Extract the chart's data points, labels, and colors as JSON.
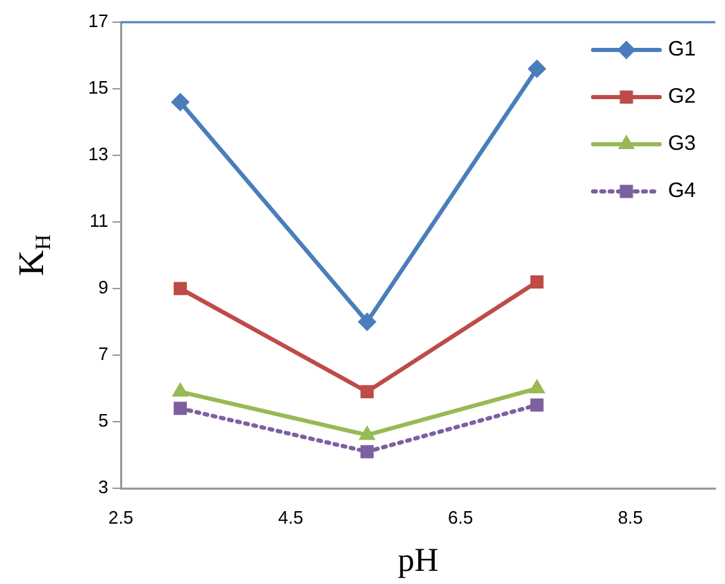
{
  "chart_data": {
    "type": "line",
    "xlabel": "pH",
    "ylabel": "K$_{H}$",
    "xlim": [
      2.5,
      9.5
    ],
    "xticks": [
      2.5,
      4.5,
      6.5,
      8.5
    ],
    "ylim": [
      3,
      17
    ],
    "yticks": [
      3,
      5,
      7,
      9,
      11,
      13,
      15,
      17
    ],
    "grid": false,
    "legend": "top right",
    "ref_lines": [
      {
        "axis": "y",
        "value": 17,
        "color": "#4f81bd"
      }
    ],
    "series": [
      {
        "name": "G1",
        "color": "#4a7ebb",
        "x": [
          3.2,
          5.4,
          7.4
        ],
        "values": [
          14.6,
          8.0,
          15.6
        ],
        "marker": "diamond",
        "line_style": "solid"
      },
      {
        "name": "G2",
        "color": "#be4b48",
        "x": [
          3.2,
          5.4,
          7.4
        ],
        "values": [
          9.0,
          5.9,
          9.2
        ],
        "marker": "square",
        "line_style": "solid"
      },
      {
        "name": "G3",
        "color": "#98b954",
        "x": [
          3.2,
          5.4,
          7.4
        ],
        "values": [
          5.9,
          4.6,
          6.0
        ],
        "marker": "triangle",
        "line_style": "solid"
      },
      {
        "name": "G4",
        "color": "#7d60a0",
        "x": [
          3.2,
          5.4,
          7.4
        ],
        "values": [
          5.4,
          4.1,
          5.5
        ],
        "marker": "square",
        "line_style": "dotted"
      }
    ]
  }
}
